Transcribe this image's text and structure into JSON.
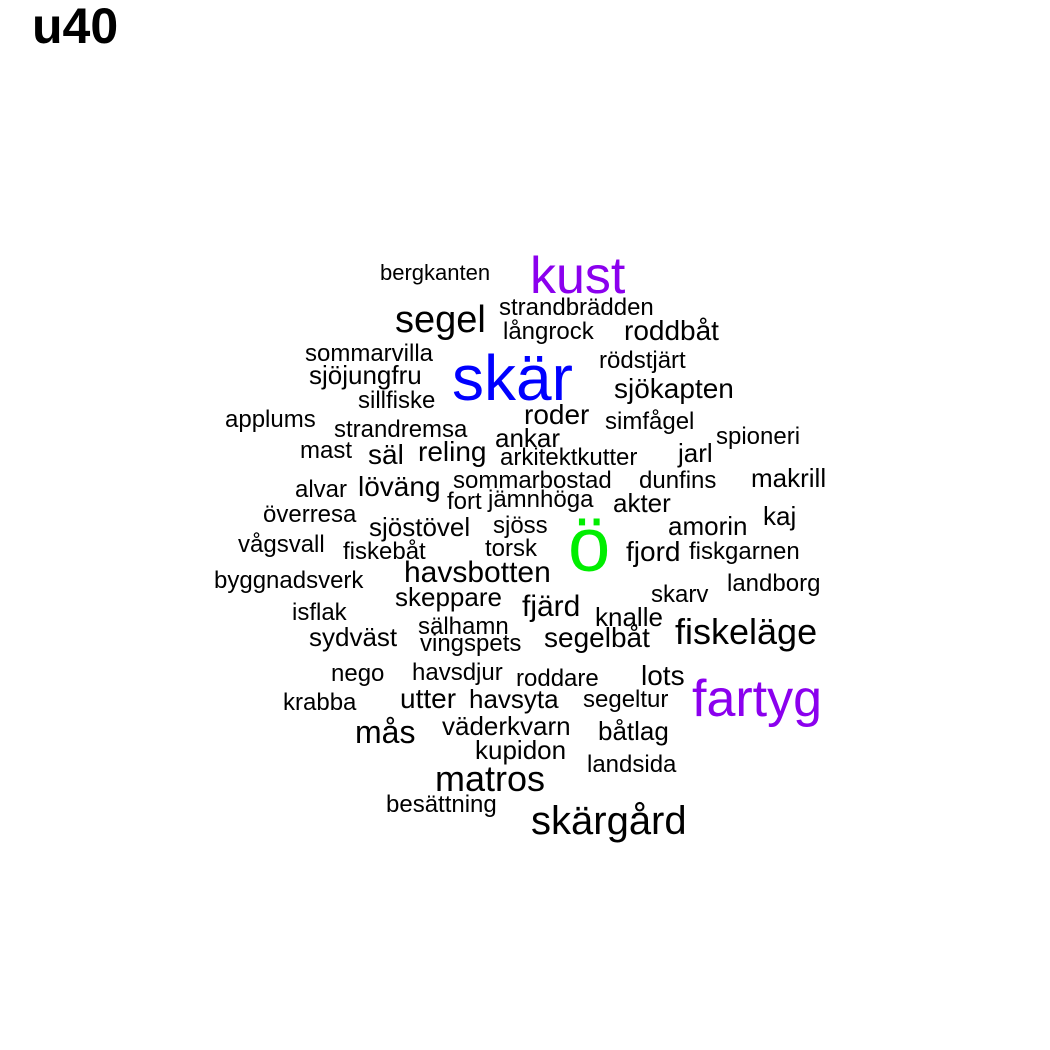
{
  "title": "u40",
  "colors": {
    "default": "#000000",
    "blue": "#0000ff",
    "purple": "#8b00ee",
    "green": "#00ee00"
  },
  "words": [
    {
      "text": "skär",
      "color": "blue"
    },
    {
      "text": "ö",
      "color": "green"
    },
    {
      "text": "kust",
      "color": "purple"
    },
    {
      "text": "fartyg",
      "color": "purple"
    },
    {
      "text": "bergkanten"
    },
    {
      "text": "segel"
    },
    {
      "text": "strandbrädden"
    },
    {
      "text": "långrock"
    },
    {
      "text": "roddbåt"
    },
    {
      "text": "sommarvilla"
    },
    {
      "text": "rödstjärt"
    },
    {
      "text": "sjöjungfru"
    },
    {
      "text": "sjökapten"
    },
    {
      "text": "sillfiske"
    },
    {
      "text": "applums"
    },
    {
      "text": "roder"
    },
    {
      "text": "simfågel"
    },
    {
      "text": "strandremsa"
    },
    {
      "text": "ankar"
    },
    {
      "text": "spioneri"
    },
    {
      "text": "mast"
    },
    {
      "text": "säl"
    },
    {
      "text": "reling"
    },
    {
      "text": "arkitektkutter"
    },
    {
      "text": "jarl"
    },
    {
      "text": "makrill"
    },
    {
      "text": "alvar"
    },
    {
      "text": "löväng"
    },
    {
      "text": "sommarbostad"
    },
    {
      "text": "dunfins"
    },
    {
      "text": "fort"
    },
    {
      "text": "jämnhöga"
    },
    {
      "text": "akter"
    },
    {
      "text": "överresa"
    },
    {
      "text": "kaj"
    },
    {
      "text": "sjöstövel"
    },
    {
      "text": "sjöss"
    },
    {
      "text": "amorin"
    },
    {
      "text": "vågsvall"
    },
    {
      "text": "fiskebåt"
    },
    {
      "text": "torsk"
    },
    {
      "text": "fjord"
    },
    {
      "text": "fiskgarnen"
    },
    {
      "text": "byggnadsverk"
    },
    {
      "text": "havsbotten"
    },
    {
      "text": "landborg"
    },
    {
      "text": "skeppare"
    },
    {
      "text": "skarv"
    },
    {
      "text": "isflak"
    },
    {
      "text": "fjärd"
    },
    {
      "text": "knalle"
    },
    {
      "text": "fiskeläge"
    },
    {
      "text": "sydväst"
    },
    {
      "text": "sälhamn"
    },
    {
      "text": "segelbåt"
    },
    {
      "text": "vingspets"
    },
    {
      "text": "nego"
    },
    {
      "text": "havsdjur"
    },
    {
      "text": "lots"
    },
    {
      "text": "roddare"
    },
    {
      "text": "krabba"
    },
    {
      "text": "utter"
    },
    {
      "text": "havsyta"
    },
    {
      "text": "segeltur"
    },
    {
      "text": "mås"
    },
    {
      "text": "väderkvarn"
    },
    {
      "text": "båtlag"
    },
    {
      "text": "kupidon"
    },
    {
      "text": "landsida"
    },
    {
      "text": "matros"
    },
    {
      "text": "besättning"
    },
    {
      "text": "skärgård"
    }
  ]
}
